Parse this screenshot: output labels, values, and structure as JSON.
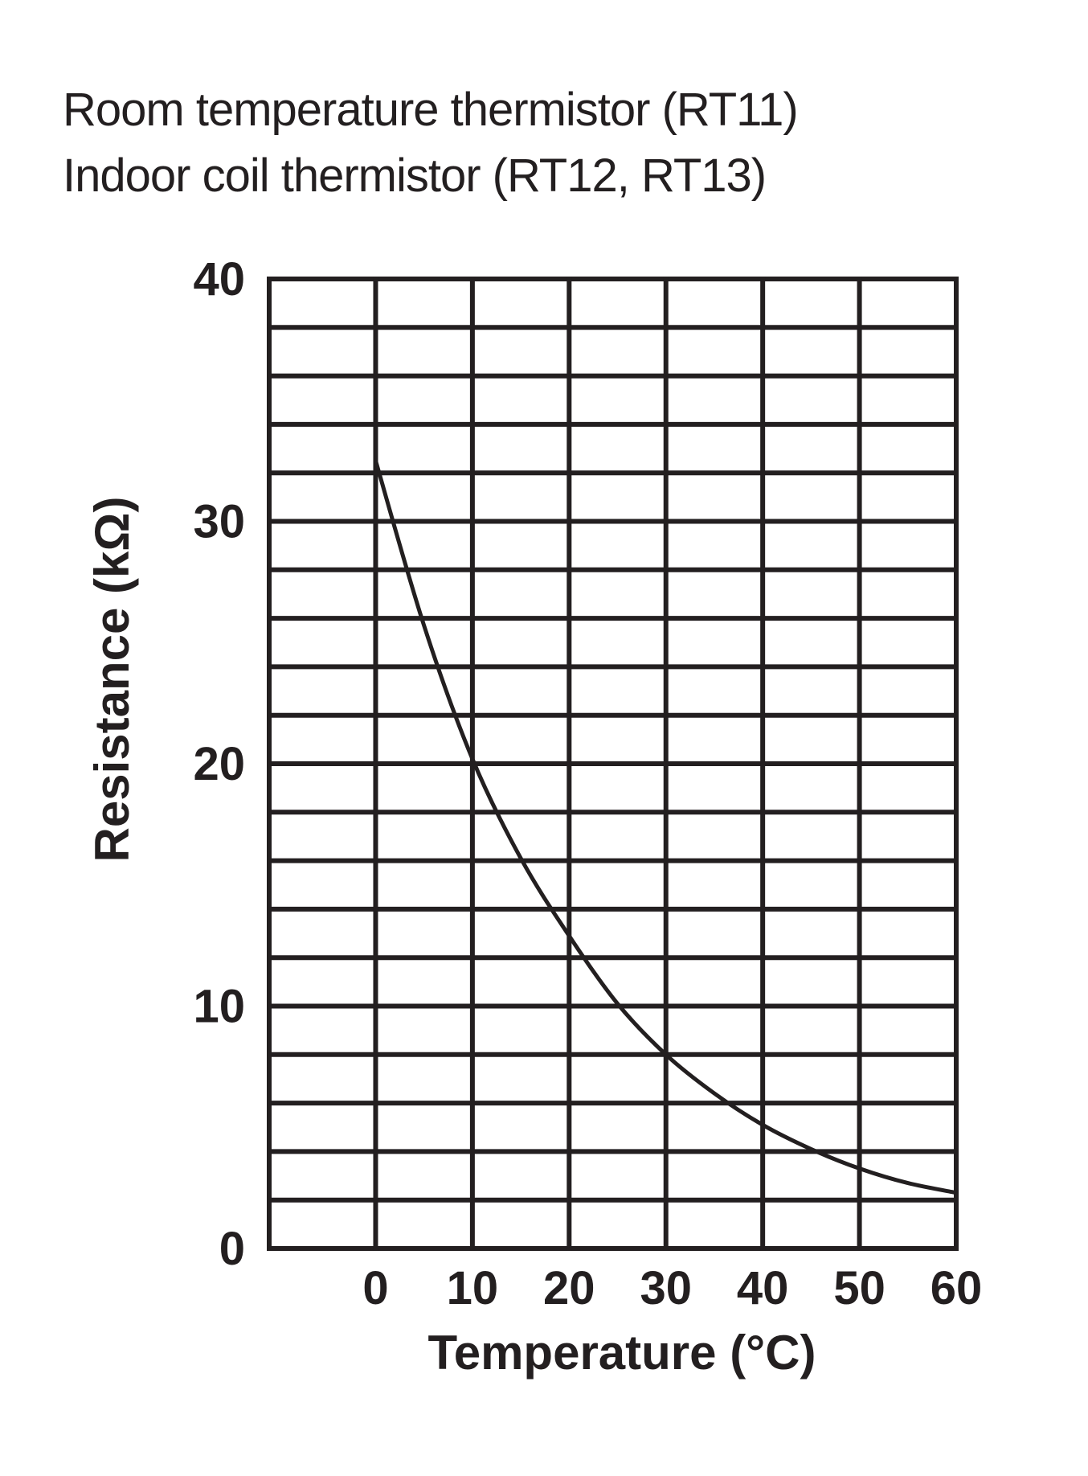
{
  "titles": {
    "line1": "Room temperature thermistor (RT11)",
    "line2": "Indoor coil thermistor (RT12, RT13)"
  },
  "colors": {
    "ink": "#231f20",
    "background": "#ffffff"
  },
  "chart_data": {
    "type": "line",
    "xlabel": "Temperature (°C)",
    "ylabel": "Resistance (kΩ)",
    "xlim": [
      -11,
      60
    ],
    "ylim": [
      0,
      40
    ],
    "x_ticks": [
      0,
      10,
      20,
      30,
      40,
      50,
      60
    ],
    "y_ticks": [
      0,
      10,
      20,
      30,
      40
    ],
    "x_tick_labels": [
      "0",
      "10",
      "20",
      "30",
      "40",
      "50",
      "60"
    ],
    "y_tick_labels": [
      "0",
      "10",
      "20",
      "30",
      "40"
    ],
    "grid": true,
    "grid_minor_y_step": 2,
    "series": [
      {
        "x": [
          0,
          5,
          10,
          15,
          20,
          25,
          30,
          35,
          40,
          45,
          50,
          55,
          60
        ],
        "y": [
          32.5,
          25.7,
          20.2,
          16.1,
          12.9,
          10.1,
          8.0,
          6.4,
          5.1,
          4.1,
          3.3,
          2.7,
          2.3
        ]
      }
    ]
  }
}
